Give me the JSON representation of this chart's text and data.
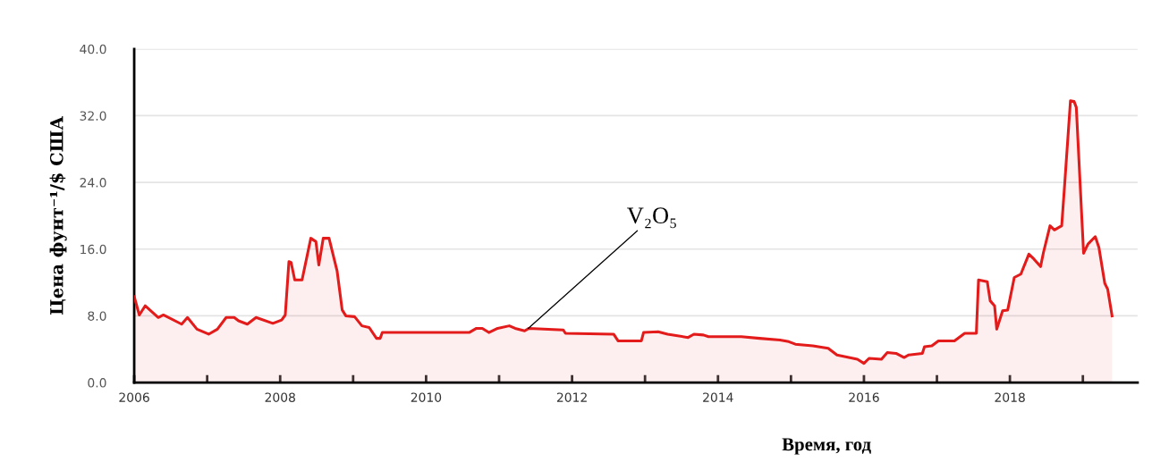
{
  "chart_data": {
    "type": "area",
    "ylabel": "Цена фунт⁻¹/$ США",
    "xlabel": "Время, год",
    "annotations": [
      {
        "text": "V₂O₅",
        "x": 2011.4,
        "y": 6.5
      }
    ],
    "xlim": [
      2006,
      2019.75
    ],
    "ylim": [
      0,
      40
    ],
    "xticks": [
      2006,
      {
        "value": 2007,
        "label": null
      },
      2008,
      {
        "value": 2009,
        "label": null
      },
      2010,
      {
        "value": 2011,
        "label": null
      },
      2012,
      {
        "value": 2013,
        "label": null
      },
      2014,
      {
        "value": 2015,
        "label": null
      },
      2016,
      {
        "value": 2017,
        "label": null
      },
      2018,
      {
        "value": 2019,
        "label": null
      }
    ],
    "yticks": [
      {
        "value": 0,
        "label": "0.0"
      },
      {
        "value": 8,
        "label": "8.0"
      },
      {
        "value": 16,
        "label": "16.0"
      },
      {
        "value": 24,
        "label": "24.0"
      },
      {
        "value": 32,
        "label": "32.0"
      },
      {
        "value": 40,
        "label": "40.0"
      }
    ],
    "grid": "y",
    "legend": false,
    "marker": "none",
    "line_style": "solid",
    "series": [
      {
        "color": "#e31b1b",
        "x": [
          2006.0,
          2006.07,
          2006.15,
          2006.33,
          2006.4,
          2006.65,
          2006.73,
          2006.86,
          2007.02,
          2007.14,
          2007.26,
          2007.37,
          2007.43,
          2007.55,
          2007.67,
          2007.9,
          2008.02,
          2008.07,
          2008.12,
          2008.15,
          2008.2,
          2008.3,
          2008.42,
          2008.49,
          2008.53,
          2008.59,
          2008.67,
          2008.78,
          2008.85,
          2008.9,
          2009.02,
          2009.12,
          2009.22,
          2009.32,
          2009.37,
          2009.4,
          2010.59,
          2010.69,
          2010.77,
          2010.86,
          2010.98,
          2011.14,
          2011.22,
          2011.35,
          2011.41,
          2011.88,
          2011.91,
          2012.57,
          2012.63,
          2012.95,
          2012.98,
          2013.18,
          2013.31,
          2013.59,
          2013.67,
          2013.8,
          2013.87,
          2014.32,
          2014.57,
          2014.85,
          2014.97,
          2015.06,
          2015.3,
          2015.51,
          2015.63,
          2015.91,
          2016.0,
          2016.07,
          2016.24,
          2016.32,
          2016.44,
          2016.55,
          2016.61,
          2016.8,
          2016.83,
          2016.93,
          2017.02,
          2017.24,
          2017.38,
          2017.54,
          2017.57,
          2017.69,
          2017.73,
          2017.79,
          2017.82,
          2017.9,
          2017.97,
          2018.06,
          2018.15,
          2018.26,
          2018.33,
          2018.42,
          2018.46,
          2018.55,
          2018.61,
          2018.71,
          2018.75,
          2018.83,
          2018.88,
          2018.91,
          2019.01,
          2019.07,
          2019.17,
          2019.22,
          2019.3,
          2019.34,
          2019.4
        ],
        "values": [
          10.3,
          8.1,
          9.2,
          7.8,
          8.1,
          7.0,
          7.8,
          6.4,
          5.8,
          6.4,
          7.8,
          7.8,
          7.4,
          7.0,
          7.8,
          7.1,
          7.5,
          8.1,
          14.5,
          14.4,
          12.3,
          12.3,
          17.3,
          16.9,
          14.1,
          17.3,
          17.3,
          13.4,
          8.7,
          8.0,
          7.9,
          6.8,
          6.6,
          5.3,
          5.3,
          6.0,
          6.0,
          6.5,
          6.5,
          6.0,
          6.5,
          6.8,
          6.5,
          6.2,
          6.5,
          6.3,
          5.9,
          5.8,
          5.0,
          5.0,
          6.0,
          6.1,
          5.8,
          5.4,
          5.8,
          5.7,
          5.5,
          5.5,
          5.3,
          5.1,
          4.9,
          4.6,
          4.4,
          4.1,
          3.3,
          2.8,
          2.3,
          2.9,
          2.8,
          3.6,
          3.5,
          3.0,
          3.3,
          3.5,
          4.3,
          4.4,
          5.0,
          5.0,
          5.9,
          5.9,
          12.3,
          12.1,
          9.8,
          9.2,
          6.4,
          8.6,
          8.7,
          12.6,
          13.0,
          15.4,
          14.8,
          13.9,
          15.6,
          18.8,
          18.3,
          18.8,
          23.7,
          33.8,
          33.7,
          33.0,
          15.5,
          16.6,
          17.5,
          16.2,
          11.9,
          11.2,
          8.0
        ]
      }
    ]
  }
}
